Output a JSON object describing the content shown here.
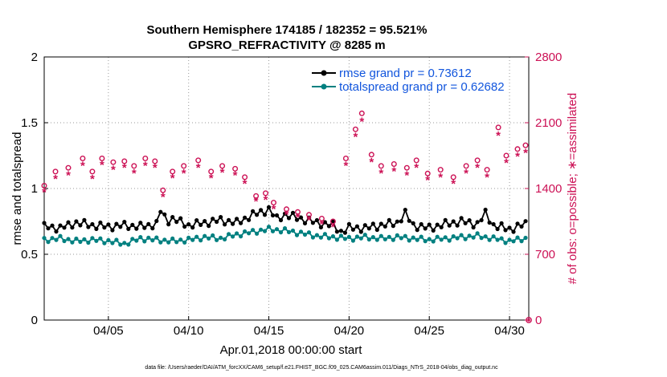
{
  "chart_data": {
    "type": "line",
    "title": "Southern Hemisphere 174185 / 182352 = 95.521%",
    "subtitle": "GPSRO_REFRACTIVITY @ 8285 m",
    "xlabel": "Apr.01,2018 00:00:00 start",
    "ylabel": "rmse and totalspread",
    "y2label": "# of obs: o=possible; ∗=assimilated",
    "xlim": [
      1,
      31.2
    ],
    "ylim": [
      0,
      2
    ],
    "y2lim": [
      0,
      2800
    ],
    "x_ticks": [
      5,
      10,
      15,
      20,
      25,
      30
    ],
    "x_tick_labels": [
      "04/05",
      "04/10",
      "04/15",
      "04/20",
      "04/25",
      "04/30"
    ],
    "y_ticks": [
      0,
      0.5,
      1,
      1.5,
      2
    ],
    "y_tick_labels": [
      "0",
      "0.5",
      "1",
      "1.5",
      "2"
    ],
    "y2_ticks": [
      0,
      700,
      1400,
      2100,
      2800
    ],
    "y2_tick_labels": [
      "0",
      "700",
      "1400",
      "2100",
      "2800"
    ],
    "grid": true,
    "legend_position": "top-right",
    "series": [
      {
        "name": "rmse grand pr = 0.73612",
        "axis": "left",
        "color": "#000000",
        "marker": "dot",
        "key_points": [
          [
            1,
            0.71
          ],
          [
            2,
            0.7
          ],
          [
            3,
            0.74
          ],
          [
            4,
            0.72
          ],
          [
            5,
            0.71
          ],
          [
            6,
            0.72
          ],
          [
            7,
            0.71
          ],
          [
            8,
            0.73
          ],
          [
            8.3,
            0.85
          ],
          [
            8.6,
            0.75
          ],
          [
            9,
            0.77
          ],
          [
            10,
            0.72
          ],
          [
            11,
            0.74
          ],
          [
            12,
            0.76
          ],
          [
            13,
            0.74
          ],
          [
            14,
            0.8
          ],
          [
            15,
            0.84
          ],
          [
            15.5,
            0.77
          ],
          [
            16,
            0.8
          ],
          [
            17,
            0.77
          ],
          [
            18,
            0.74
          ],
          [
            19,
            0.72
          ],
          [
            19.5,
            0.67
          ],
          [
            20,
            0.7
          ],
          [
            21,
            0.7
          ],
          [
            22,
            0.72
          ],
          [
            23,
            0.74
          ],
          [
            23.5,
            0.81
          ],
          [
            24,
            0.72
          ],
          [
            25,
            0.7
          ],
          [
            26,
            0.73
          ],
          [
            27,
            0.75
          ],
          [
            28,
            0.73
          ],
          [
            28.5,
            0.81
          ],
          [
            29,
            0.72
          ],
          [
            30,
            0.69
          ],
          [
            31,
            0.73
          ]
        ]
      },
      {
        "name": "totalspread grand pr = 0.62682",
        "axis": "left",
        "color": "#008080",
        "marker": "dot",
        "key_points": [
          [
            1,
            0.61
          ],
          [
            2,
            0.62
          ],
          [
            3,
            0.6
          ],
          [
            4,
            0.61
          ],
          [
            5,
            0.6
          ],
          [
            6,
            0.58
          ],
          [
            7,
            0.62
          ],
          [
            8,
            0.61
          ],
          [
            9,
            0.6
          ],
          [
            10,
            0.61
          ],
          [
            11,
            0.63
          ],
          [
            12,
            0.62
          ],
          [
            13,
            0.65
          ],
          [
            14,
            0.67
          ],
          [
            15,
            0.69
          ],
          [
            16,
            0.68
          ],
          [
            17,
            0.66
          ],
          [
            18,
            0.64
          ],
          [
            19,
            0.63
          ],
          [
            20,
            0.62
          ],
          [
            21,
            0.63
          ],
          [
            22,
            0.62
          ],
          [
            23,
            0.63
          ],
          [
            24,
            0.62
          ],
          [
            25,
            0.61
          ],
          [
            26,
            0.62
          ],
          [
            27,
            0.63
          ],
          [
            28,
            0.64
          ],
          [
            29,
            0.62
          ],
          [
            30,
            0.6
          ],
          [
            31,
            0.62
          ]
        ]
      },
      {
        "name": "possible",
        "axis": "right",
        "color": "#cc1155",
        "marker": "circle",
        "key_points": [
          [
            1,
            1430
          ],
          [
            1.7,
            1580
          ],
          [
            2.5,
            1620
          ],
          [
            3.4,
            1720
          ],
          [
            4,
            1580
          ],
          [
            4.6,
            1720
          ],
          [
            5.3,
            1680
          ],
          [
            6,
            1690
          ],
          [
            6.6,
            1640
          ],
          [
            7.3,
            1720
          ],
          [
            7.9,
            1690
          ],
          [
            8.4,
            1380
          ],
          [
            9,
            1580
          ],
          [
            9.7,
            1640
          ],
          [
            10.6,
            1700
          ],
          [
            11.4,
            1580
          ],
          [
            12.1,
            1640
          ],
          [
            12.9,
            1610
          ],
          [
            13.5,
            1520
          ],
          [
            14.2,
            1320
          ],
          [
            14.8,
            1350
          ],
          [
            15.3,
            1250
          ],
          [
            16.1,
            1180
          ],
          [
            16.8,
            1150
          ],
          [
            17.5,
            1120
          ],
          [
            18.3,
            1080
          ],
          [
            19,
            1050
          ],
          [
            19.8,
            1720
          ],
          [
            20.4,
            2030
          ],
          [
            20.8,
            2200
          ],
          [
            21.4,
            1760
          ],
          [
            22,
            1640
          ],
          [
            22.8,
            1660
          ],
          [
            23.6,
            1620
          ],
          [
            24.2,
            1700
          ],
          [
            24.9,
            1560
          ],
          [
            25.7,
            1600
          ],
          [
            26.5,
            1520
          ],
          [
            27.3,
            1640
          ],
          [
            28,
            1700
          ],
          [
            28.6,
            1600
          ],
          [
            29.3,
            2050
          ],
          [
            29.8,
            1750
          ],
          [
            30.5,
            1820
          ],
          [
            31,
            1860
          ]
        ]
      },
      {
        "name": "assimilated",
        "axis": "right",
        "color": "#cc1155",
        "marker": "asterisk",
        "key_points": [
          [
            1,
            1370
          ],
          [
            1.7,
            1510
          ],
          [
            2.5,
            1550
          ],
          [
            3.4,
            1650
          ],
          [
            4,
            1510
          ],
          [
            4.6,
            1660
          ],
          [
            5.3,
            1610
          ],
          [
            6,
            1630
          ],
          [
            6.6,
            1570
          ],
          [
            7.3,
            1650
          ],
          [
            7.9,
            1630
          ],
          [
            8.4,
            1320
          ],
          [
            9,
            1520
          ],
          [
            9.7,
            1570
          ],
          [
            10.6,
            1630
          ],
          [
            11.4,
            1520
          ],
          [
            12.1,
            1580
          ],
          [
            12.9,
            1550
          ],
          [
            13.5,
            1460
          ],
          [
            14.2,
            1270
          ],
          [
            14.8,
            1290
          ],
          [
            15.3,
            1190
          ],
          [
            16.1,
            1130
          ],
          [
            16.8,
            1100
          ],
          [
            17.5,
            1070
          ],
          [
            18.3,
            1030
          ],
          [
            19,
            1000
          ],
          [
            19.8,
            1650
          ],
          [
            20.4,
            1960
          ],
          [
            20.8,
            2120
          ],
          [
            21.4,
            1690
          ],
          [
            22,
            1570
          ],
          [
            22.8,
            1590
          ],
          [
            23.6,
            1550
          ],
          [
            24.2,
            1630
          ],
          [
            24.9,
            1500
          ],
          [
            25.7,
            1530
          ],
          [
            26.5,
            1460
          ],
          [
            27.3,
            1570
          ],
          [
            28,
            1630
          ],
          [
            28.6,
            1530
          ],
          [
            29.3,
            1970
          ],
          [
            29.8,
            1680
          ],
          [
            30.5,
            1750
          ],
          [
            31,
            1790
          ]
        ]
      }
    ]
  },
  "footer": {
    "data_file": "data file: /Users/raeder/DAI/ATM_forcXX/CAM6_setup/f.e21.FHIST_BGC.f09_025.CAM6assim.011/Diags_NTrS_2018-04/obs_diag_output.nc"
  }
}
